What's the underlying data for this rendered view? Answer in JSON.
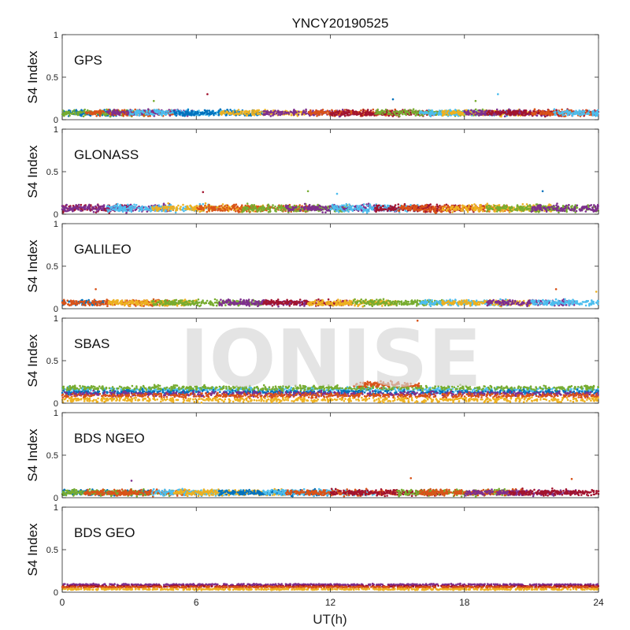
{
  "chart_data": {
    "type": "scatter",
    "title": "YNCY20190525",
    "xlabel": "UT(h)",
    "x_range": [
      0,
      24
    ],
    "x_ticks": [
      0,
      6,
      12,
      18,
      24
    ],
    "watermark": "IONISE",
    "series_colors": [
      "#0072BD",
      "#D95319",
      "#EDB120",
      "#7E2F8E",
      "#77AC30",
      "#4DBEEE",
      "#A2142F"
    ],
    "panels": [
      {
        "label": "GPS",
        "ylabel": "S4 Index",
        "ylim": [
          0,
          1
        ],
        "yticks": [
          0,
          0.5,
          1
        ],
        "segments": [
          [
            0,
            3,
            "#0072BD"
          ],
          [
            0,
            4,
            "#77AC30"
          ],
          [
            1,
            5,
            "#D95319"
          ],
          [
            2,
            6,
            "#7E2F8E"
          ],
          [
            3,
            8,
            "#4DBEEE"
          ],
          [
            5,
            9,
            "#0072BD"
          ],
          [
            7,
            11,
            "#EDB120"
          ],
          [
            9,
            13,
            "#7E2F8E"
          ],
          [
            11,
            15,
            "#D95319"
          ],
          [
            12,
            17,
            "#A2142F"
          ],
          [
            14,
            19,
            "#77AC30"
          ],
          [
            16,
            20,
            "#4DBEEE"
          ],
          [
            17,
            21,
            "#EDB120"
          ],
          [
            18,
            22,
            "#7E2F8E"
          ],
          [
            19,
            24,
            "#A2142F"
          ],
          [
            21,
            24,
            "#D95319"
          ],
          [
            22,
            24,
            "#4DBEEE"
          ]
        ],
        "base": 0.08,
        "spread": 0.05,
        "spikes": [
          [
            6.5,
            0.3
          ],
          [
            4.1,
            0.22
          ],
          [
            14.8,
            0.24
          ],
          [
            18.5,
            0.22
          ],
          [
            19.5,
            0.3
          ]
        ]
      },
      {
        "label": "GLONASS",
        "ylabel": "S4 Index",
        "ylim": [
          0,
          1
        ],
        "yticks": [
          0,
          0.5,
          1
        ],
        "segments": [
          [
            0,
            3,
            "#A2142F"
          ],
          [
            0,
            5,
            "#7E2F8E"
          ],
          [
            2,
            7,
            "#4DBEEE"
          ],
          [
            4,
            9,
            "#EDB120"
          ],
          [
            6,
            11,
            "#D95319"
          ],
          [
            8,
            13,
            "#77AC30"
          ],
          [
            10,
            15,
            "#7E2F8E"
          ],
          [
            12,
            16,
            "#4DBEEE"
          ],
          [
            14,
            19,
            "#A2142F"
          ],
          [
            15,
            20,
            "#D95319"
          ],
          [
            17,
            22,
            "#EDB120"
          ],
          [
            19,
            24,
            "#77AC30"
          ],
          [
            21,
            24,
            "#7E2F8E"
          ]
        ],
        "base": 0.07,
        "spread": 0.06,
        "spikes": [
          [
            6.3,
            0.26
          ],
          [
            11.0,
            0.27
          ],
          [
            21.5,
            0.27
          ],
          [
            12.3,
            0.24
          ]
        ]
      },
      {
        "label": "GALILEO",
        "ylabel": "S4 Index",
        "ylim": [
          0,
          1
        ],
        "yticks": [
          0,
          0.5,
          1
        ],
        "segments": [
          [
            0,
            2,
            "#0072BD"
          ],
          [
            0,
            5,
            "#D95319"
          ],
          [
            2,
            6,
            "#EDB120"
          ],
          [
            4,
            9,
            "#77AC30"
          ],
          [
            7,
            11,
            "#7E2F8E"
          ],
          [
            9,
            13,
            "#A2142F"
          ],
          [
            11,
            15,
            "#EDB120"
          ],
          [
            13,
            17,
            "#77AC30"
          ],
          [
            16,
            20,
            "#4DBEEE"
          ],
          [
            17,
            21,
            "#EDB120"
          ],
          [
            19,
            23,
            "#7E2F8E"
          ],
          [
            21,
            24,
            "#4DBEEE"
          ]
        ],
        "base": 0.07,
        "spread": 0.05,
        "spikes": [
          [
            1.5,
            0.23
          ],
          [
            22.1,
            0.23
          ],
          [
            23.9,
            0.2
          ]
        ]
      },
      {
        "label": "SBAS",
        "ylabel": "S4 Index",
        "ylim": [
          0,
          1
        ],
        "yticks": [
          0,
          0.5,
          1
        ],
        "bands": [
          [
            0.16,
            "#4DBEEE"
          ],
          [
            0.13,
            "#0072BD"
          ],
          [
            0.11,
            "#7E2F8E"
          ],
          [
            0.18,
            "#77AC30"
          ],
          [
            0.09,
            "#D95319"
          ],
          [
            0.04,
            "#EDB120"
          ]
        ],
        "bump": [
          13,
          16,
          "#D95319",
          0.22
        ],
        "spikes": [
          [
            15.9,
            0.97
          ]
        ],
        "spread": 0.04
      },
      {
        "label": "BDS NGEO",
        "ylabel": "S4 Index",
        "ylim": [
          0,
          1
        ],
        "yticks": [
          0,
          0.5,
          1
        ],
        "segments": [
          [
            0,
            4,
            "#0072BD"
          ],
          [
            0,
            5,
            "#77AC30"
          ],
          [
            1,
            6,
            "#D95319"
          ],
          [
            4,
            8,
            "#4DBEEE"
          ],
          [
            5,
            10,
            "#EDB120"
          ],
          [
            7,
            12,
            "#0072BD"
          ],
          [
            9,
            14,
            "#4DBEEE"
          ],
          [
            10,
            15,
            "#D95319"
          ],
          [
            12,
            17,
            "#A2142F"
          ],
          [
            15,
            20,
            "#77AC30"
          ],
          [
            16,
            21,
            "#D95319"
          ],
          [
            18,
            23,
            "#7E2F8E"
          ],
          [
            20,
            24,
            "#A2142F"
          ]
        ],
        "base": 0.06,
        "spread": 0.05,
        "spikes": [
          [
            3.1,
            0.2
          ],
          [
            15.6,
            0.23
          ],
          [
            22.8,
            0.22
          ]
        ]
      },
      {
        "label": "BDS GEO",
        "ylabel": "S4 Index",
        "ylim": [
          0,
          1
        ],
        "yticks": [
          0,
          0.5,
          1
        ],
        "bands": [
          [
            0.09,
            "#7E2F8E"
          ],
          [
            0.07,
            "#A2142F"
          ],
          [
            0.06,
            "#D95319"
          ],
          [
            0.035,
            "#EDB120"
          ]
        ],
        "spread": 0.012
      }
    ]
  }
}
